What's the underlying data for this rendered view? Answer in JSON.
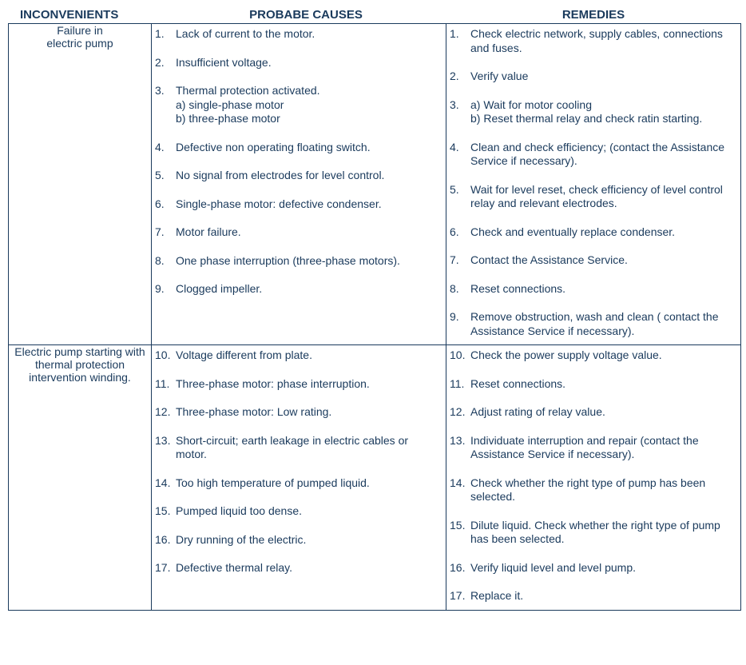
{
  "headers": {
    "col1": "INCONVENIENTS",
    "col2": "PROBABE CAUSES",
    "col3": "REMEDIES"
  },
  "rows": [
    {
      "inconvenient": "Failure in\nelectric pump",
      "causes": [
        {
          "n": "1.",
          "t": "Lack of current to the motor."
        },
        {
          "n": "2.",
          "t": "Insufficient voltage."
        },
        {
          "n": "3.",
          "t": "Thermal protection activated.",
          "subs": [
            "a)  single-phase motor",
            "b)  three-phase motor"
          ]
        },
        {
          "n": "4.",
          "t": "Defective non operating floating switch."
        },
        {
          "n": "5.",
          "t": "No signal from electrodes for level control."
        },
        {
          "n": "6.",
          "t": "Single-phase motor: defective condenser."
        },
        {
          "n": "7.",
          "t": "Motor failure."
        },
        {
          "n": "8.",
          "t": "One phase interruption (three-phase motors)."
        },
        {
          "n": "9.",
          "t": "Clogged impeller."
        }
      ],
      "remedies": [
        {
          "n": "1.",
          "t": "Check electric network, supply cables, connections and fuses."
        },
        {
          "n": "2.",
          "t": "Verify value"
        },
        {
          "n": "3.",
          "t": "a)  Wait for  motor cooling",
          "subs": [
            "",
            "b)  Reset thermal relay and check   ratin starting."
          ]
        },
        {
          "n": "4.",
          "t": "Clean and check efficiency; (contact the Assistance Service  if necessary)."
        },
        {
          "n": "5.",
          "t": "Wait for level reset, check efficiency of level control relay and relevant electrodes."
        },
        {
          "n": "6.",
          "t": "Check and eventually replace condenser."
        },
        {
          "n": "7.",
          "t": "Contact the Assistance Service."
        },
        {
          "n": "8.",
          "t": "Reset connections."
        },
        {
          "n": "9.",
          "t": "Remove obstruction, wash and clean ( contact the Assistance Service if necessary)."
        }
      ]
    },
    {
      "inconvenient": "Electric pump starting with\nthermal protection\nintervention winding.",
      "causes": [
        {
          "n": "10.",
          "t": "Voltage different from plate."
        },
        {
          "n": "11.",
          "t": "Three-phase motor: phase  interruption."
        },
        {
          "n": "12.",
          "t": "Three-phase motor: Low rating."
        },
        {
          "n": "13.",
          "t": "Short-circuit; earth leakage  in electric cables or motor."
        },
        {
          "n": "14.",
          "t": "Too high temperature of pumped liquid."
        },
        {
          "n": "15.",
          "t": "Pumped liquid too dense."
        },
        {
          "n": "16.",
          "t": "Dry running of the electric."
        },
        {
          "n": "17.",
          "t": "Defective thermal relay."
        }
      ],
      "remedies": [
        {
          "n": "10.",
          "t": "Check the power supply voltage value."
        },
        {
          "n": "11.",
          "t": "Reset connections."
        },
        {
          "n": "12.",
          "t": "Adjust rating of relay value."
        },
        {
          "n": "13.",
          "t": "Individuate interruption and repair (contact the Assistance Service if necessary)."
        },
        {
          "n": "14.",
          "t": "Check whether the right  type of pump has been selected."
        },
        {
          "n": "15.",
          "t": "Dilute liquid. Check whether the right type of  pump has been selected."
        },
        {
          "n": "16.",
          "t": "Verify liquid level  and  level pump."
        },
        {
          "n": "17.",
          "t": "Replace it."
        }
      ]
    }
  ]
}
